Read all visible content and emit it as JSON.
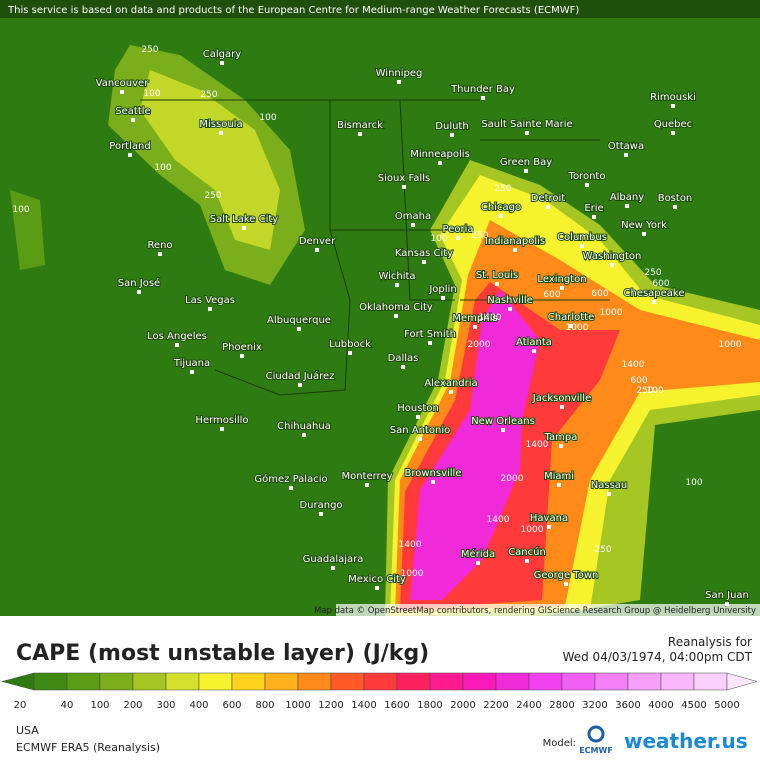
{
  "header": {
    "attribution": "This service is based on data and products of the European Centre for Medium-range Weather Forecasts (ECMWF)"
  },
  "map": {
    "cities": [
      "Calgary",
      "Winnipeg",
      "Thunder Bay",
      "Rimouski",
      "Vancouver",
      "Seattle",
      "Missoula",
      "Bismarck",
      "Duluth",
      "Sault Sainte Marie",
      "Quebec",
      "Portland",
      "Minneapolis",
      "Green Bay",
      "Ottawa",
      "Toronto",
      "Sioux Falls",
      "Albany",
      "Boston",
      "Detroit",
      "Erie",
      "Chicago",
      "Salt Lake City",
      "Omaha",
      "Peoria",
      "New York",
      "Reno",
      "Denver",
      "Indianapolis",
      "Columbus",
      "Kansas City",
      "Washington",
      "St. Louis",
      "Wichita",
      "Joplin",
      "Lexington",
      "San José",
      "Las Vegas",
      "Oklahoma City",
      "Nashville",
      "Chesapeake",
      "Fort Smith",
      "Albuquerque",
      "Memphis",
      "Charlotte",
      "Los Angeles",
      "Phoenix",
      "Lubbock",
      "Dallas",
      "Atlanta",
      "Tijuana",
      "Ciudad Juárez",
      "Alexandria",
      "Jacksonville",
      "Houston",
      "Hermosillo",
      "Chihuahua",
      "San Antonio",
      "New Orleans",
      "Tampa",
      "Brownsville",
      "Gómez Palacio",
      "Monterrey",
      "Miami",
      "Nassau",
      "Durango",
      "Havana",
      "Guadalajara",
      "Mérida",
      "Cancún",
      "George Town",
      "Mexico City",
      "San Juan"
    ],
    "contour_labels": [
      250,
      100,
      250,
      100,
      100,
      250,
      100,
      250,
      100,
      250,
      600,
      600,
      1000,
      1400,
      2000,
      1000,
      1400,
      600,
      250,
      600,
      1000,
      250,
      100,
      1400,
      2000,
      1400,
      1000,
      1400,
      1000,
      100,
      250
    ],
    "credit": "Map data © OpenStreetMap contributors, rendering GIScience Research Group @ Heidelberg University"
  },
  "legend": {
    "title": "CAPE (most unstable layer) (J/kg)",
    "reanalysis_label": "Reanalysis for",
    "valid_time": "Wed 04/03/1974, 04:00pm CDT",
    "ticks": [
      20,
      40,
      100,
      200,
      300,
      400,
      600,
      800,
      1000,
      1200,
      1400,
      1600,
      1800,
      2000,
      2200,
      2400,
      2800,
      3200,
      3600,
      4000,
      4500,
      5000
    ],
    "colors": [
      "#2e7b12",
      "#3f8a12",
      "#5a9c14",
      "#7aae1a",
      "#a6c624",
      "#d4e12c",
      "#f6f22e",
      "#ffd21e",
      "#ffb01a",
      "#ff8a1a",
      "#ff5a28",
      "#ff3a3a",
      "#ff2060",
      "#ff1a90",
      "#f81ab8",
      "#f02ad8",
      "#f040f0",
      "#f060f5",
      "#f380f8",
      "#f6a0fa",
      "#f8b8fb",
      "#fbd0fd",
      "#fde6fe"
    ]
  },
  "footer": {
    "region": "USA",
    "model": "ECMWF ERA5 (Reanalysis)",
    "model_label": "Model:",
    "model_logo": "ECMWF",
    "brand": "weather.us"
  }
}
